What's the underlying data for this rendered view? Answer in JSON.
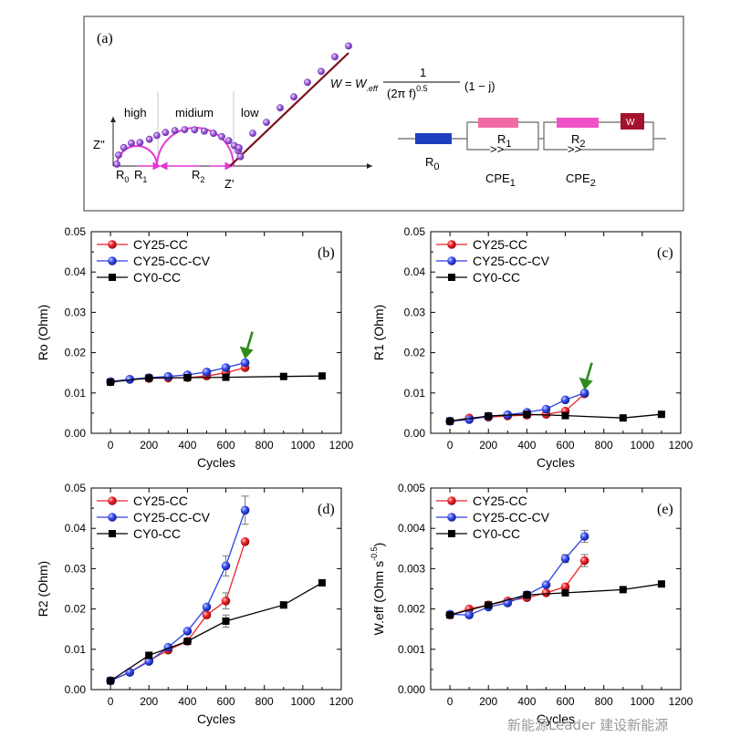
{
  "panel_a": {
    "label": "(a)",
    "z_imag_label": "Z''",
    "z_real_label": "Z'",
    "region_high": "high",
    "region_medium": "midium",
    "region_low": "low",
    "r0_axis": "R",
    "r0_axis_sub": "0",
    "r1_axis": "R",
    "r1_axis_sub": "1",
    "r2_axis": "R",
    "r2_axis_sub": "2",
    "warburg_lhs": "W = W",
    "warburg_lhs_sub": ".eff",
    "warburg_num": "1",
    "warburg_den": "(2π f)",
    "warburg_den_exp": "0.5",
    "warburg_tail": "(1 − j)",
    "circuit": {
      "r0": "R",
      "r0_sub": "0",
      "r1": "R",
      "r1_sub": "1",
      "r2": "R",
      "r2_sub": "2",
      "cpe1": "CPE",
      "cpe1_sub": "1",
      "cpe2": "CPE",
      "cpe2_sub": "2",
      "w": "W"
    },
    "colors": {
      "r0": "#1f3fbf",
      "r_pink": "#f06aa5",
      "w_box": "#a3122e",
      "arc": "#e33ad6",
      "dots": "#a86be0",
      "line": "#7a1020"
    }
  },
  "legend": {
    "cy25_cc": "CY25-CC",
    "cy25_cccv": "CY25-CC-CV",
    "cy0_cc": "CY0-CC"
  },
  "series_colors": {
    "cy25_cc": "#e8262b",
    "cy25_cccv": "#2a3fe0",
    "cy0_cc": "#000000"
  },
  "watermark": "新能源Leader 建设新能源",
  "chart_data": [
    {
      "panel": "(b)",
      "type": "line",
      "xlabel": "Cycles",
      "ylabel": "Ro (Ohm)",
      "xlim": [
        -100,
        1200
      ],
      "ylim": [
        0,
        0.05
      ],
      "xticks": [
        "0",
        "200",
        "400",
        "600",
        "800",
        "1000",
        "1200"
      ],
      "yticks": [
        "0.00",
        "0.01",
        "0.02",
        "0.03",
        "0.04",
        "0.05"
      ],
      "arrow_at": [
        700,
        0.0175
      ],
      "series": [
        {
          "name": "CY25-CC",
          "x": [
            0,
            100,
            200,
            300,
            400,
            500,
            600,
            700
          ],
          "values": [
            0.0128,
            0.0134,
            0.0136,
            0.0137,
            0.0138,
            0.0142,
            0.015,
            0.0163
          ]
        },
        {
          "name": "CY25-CC-CV",
          "x": [
            0,
            100,
            200,
            300,
            400,
            500,
            600,
            700
          ],
          "values": [
            0.0128,
            0.0134,
            0.0138,
            0.0141,
            0.0145,
            0.0152,
            0.0163,
            0.0175
          ]
        },
        {
          "name": "CY0-CC",
          "x": [
            0,
            200,
            400,
            600,
            900,
            1100
          ],
          "values": [
            0.0127,
            0.0137,
            0.0138,
            0.0139,
            0.0141,
            0.0142
          ]
        }
      ]
    },
    {
      "panel": "(c)",
      "type": "line",
      "xlabel": "Cycles",
      "ylabel": "R1 (Ohm)",
      "xlim": [
        -100,
        1200
      ],
      "ylim": [
        0,
        0.05
      ],
      "xticks": [
        "0",
        "200",
        "400",
        "600",
        "800",
        "1000",
        "1200"
      ],
      "yticks": [
        "0.00",
        "0.01",
        "0.02",
        "0.03",
        "0.04",
        "0.05"
      ],
      "arrow_at": [
        700,
        0.0098
      ],
      "series": [
        {
          "name": "CY25-CC",
          "x": [
            0,
            100,
            200,
            300,
            400,
            500,
            600,
            700
          ],
          "values": [
            0.003,
            0.0038,
            0.004,
            0.0043,
            0.0045,
            0.0047,
            0.0055,
            0.0098
          ]
        },
        {
          "name": "CY25-CC-CV",
          "x": [
            0,
            100,
            200,
            300,
            400,
            500,
            600,
            700
          ],
          "values": [
            0.003,
            0.0034,
            0.0042,
            0.0046,
            0.0052,
            0.006,
            0.0083,
            0.01
          ]
        },
        {
          "name": "CY0-CC",
          "x": [
            0,
            200,
            400,
            600,
            900,
            1100
          ],
          "values": [
            0.003,
            0.0043,
            0.0047,
            0.0044,
            0.0038,
            0.0047
          ]
        }
      ]
    },
    {
      "panel": "(d)",
      "type": "line",
      "xlabel": "Cycles",
      "ylabel": "R2 (Ohm)",
      "xlim": [
        -100,
        1200
      ],
      "ylim": [
        0,
        0.05
      ],
      "xticks": [
        "0",
        "200",
        "400",
        "600",
        "800",
        "1000",
        "1200"
      ],
      "yticks": [
        "0.00",
        "0.01",
        "0.02",
        "0.03",
        "0.04",
        "0.05"
      ],
      "series": [
        {
          "name": "CY25-CC",
          "x": [
            0,
            100,
            200,
            300,
            400,
            500,
            600,
            700
          ],
          "values": [
            0.0022,
            0.0043,
            0.0072,
            0.0098,
            0.012,
            0.0185,
            0.022,
            0.0367
          ],
          "err": [
            0,
            0,
            0,
            0,
            0,
            0,
            0.002,
            0
          ]
        },
        {
          "name": "CY25-CC-CV",
          "x": [
            0,
            100,
            200,
            300,
            400,
            500,
            600,
            700
          ],
          "values": [
            0.0022,
            0.0043,
            0.007,
            0.0105,
            0.0145,
            0.0205,
            0.0307,
            0.0445
          ],
          "err": [
            0,
            0,
            0,
            0,
            0,
            0,
            0.0025,
            0.0035
          ]
        },
        {
          "name": "CY0-CC",
          "x": [
            0,
            200,
            400,
            600,
            900,
            1100
          ],
          "values": [
            0.0022,
            0.0085,
            0.012,
            0.017,
            0.021,
            0.0265
          ],
          "err": [
            0,
            0,
            0,
            0.0015,
            0.0008,
            0
          ]
        }
      ]
    },
    {
      "panel": "(e)",
      "type": "line",
      "xlabel": "Cycles",
      "ylabel": "W.eff (Ohm s",
      "ylabel_exp": "-0.5",
      "ylabel_close": ")",
      "xlim": [
        -100,
        1200
      ],
      "ylim": [
        0,
        0.005
      ],
      "xticks": [
        "0",
        "200",
        "400",
        "600",
        "800",
        "1000",
        "1200"
      ],
      "yticks": [
        "0.000",
        "0.001",
        "0.002",
        "0.003",
        "0.004",
        "0.005"
      ],
      "series": [
        {
          "name": "CY25-CC",
          "x": [
            0,
            100,
            200,
            300,
            400,
            500,
            600,
            700
          ],
          "values": [
            0.00185,
            0.002,
            0.0021,
            0.0022,
            0.00228,
            0.0024,
            0.00255,
            0.0032
          ],
          "err": [
            0,
            0,
            0,
            0,
            0,
            0,
            0,
            0.00015
          ]
        },
        {
          "name": "CY25-CC-CV",
          "x": [
            0,
            100,
            200,
            300,
            400,
            500,
            600,
            700
          ],
          "values": [
            0.00187,
            0.00185,
            0.00205,
            0.00215,
            0.00235,
            0.0026,
            0.00325,
            0.0038
          ],
          "err": [
            0,
            0,
            0,
            0,
            0,
            0,
            0.0001,
            0.00015
          ]
        },
        {
          "name": "CY0-CC",
          "x": [
            0,
            200,
            400,
            600,
            900,
            1100
          ],
          "values": [
            0.00185,
            0.0021,
            0.00235,
            0.0024,
            0.00248,
            0.00262
          ]
        }
      ]
    }
  ]
}
